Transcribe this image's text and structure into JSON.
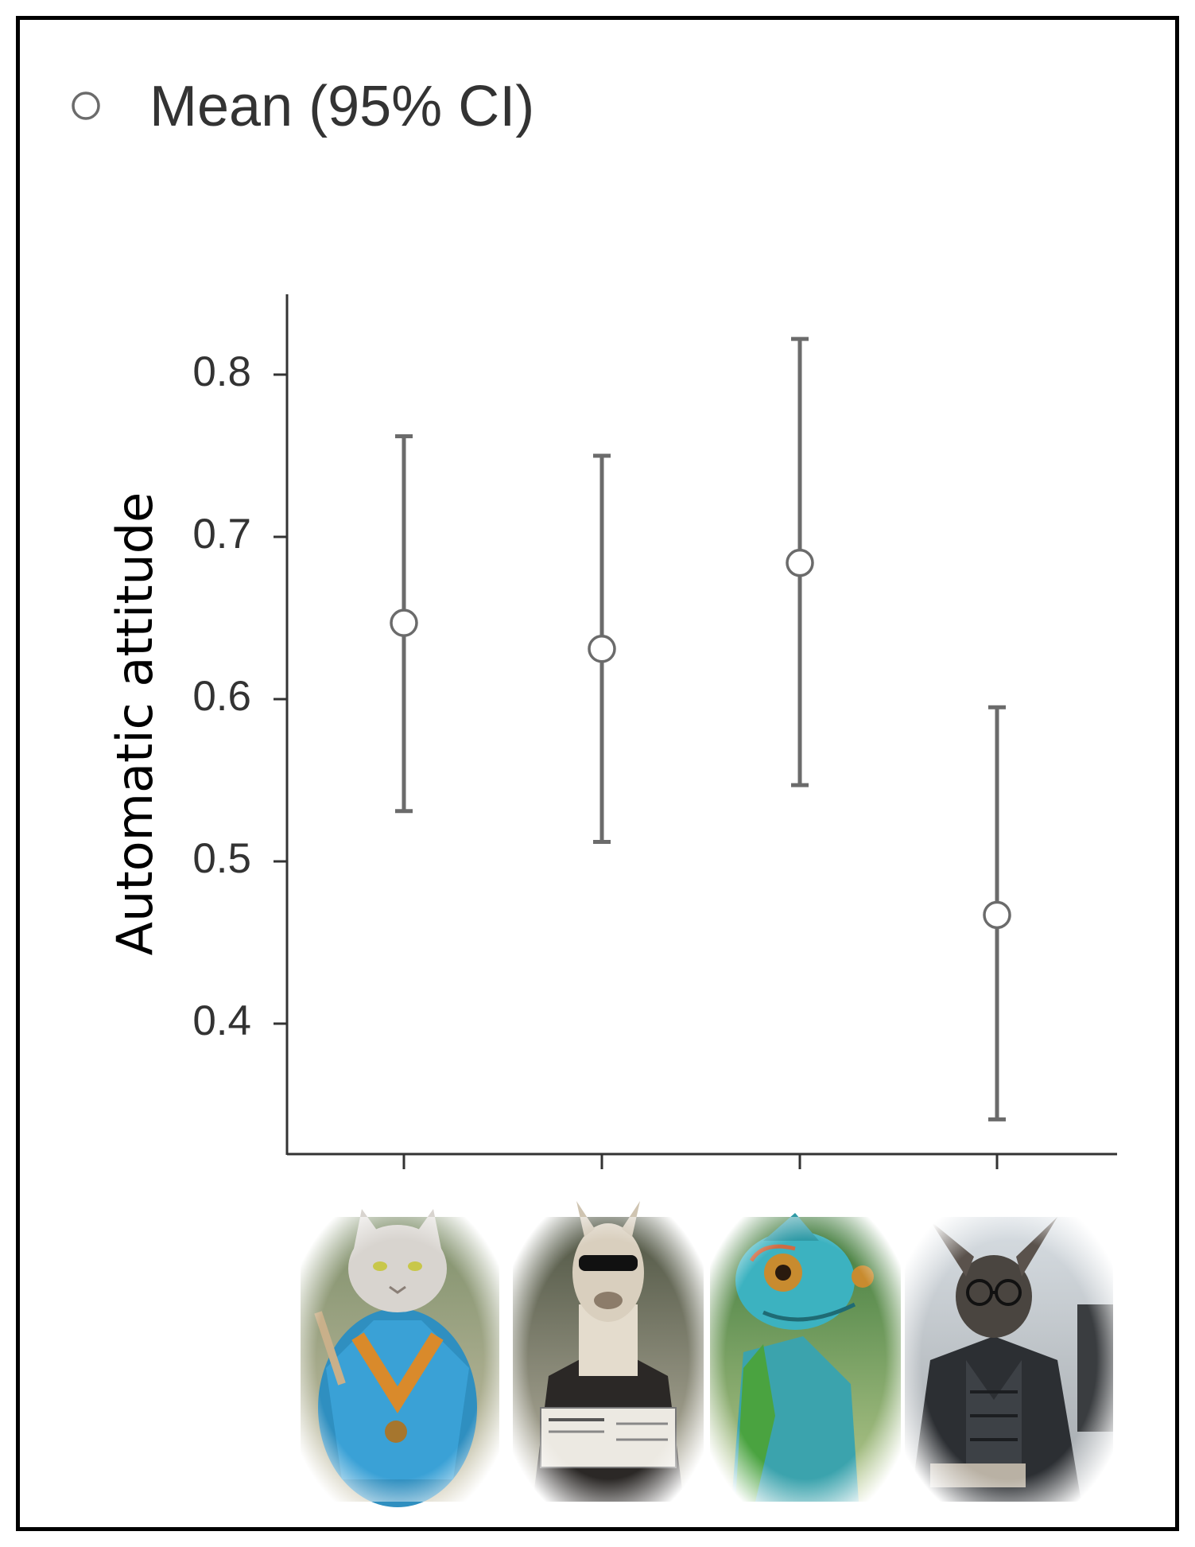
{
  "legend": {
    "label": "Mean (95% CI)",
    "marker": "open-circle"
  },
  "colors": {
    "errorbar": "#6b6b6b",
    "axis": "#333333",
    "marker_fill": "#ffffff",
    "frame": "#000000"
  },
  "chart_data": {
    "type": "scatter",
    "title": "",
    "xlabel": "",
    "ylabel": "Automatic attitude",
    "ylim": [
      0.34,
      0.845
    ],
    "yticks": [
      0.4,
      0.5,
      0.6,
      0.7,
      0.8
    ],
    "ytick_labels": [
      "0.4",
      "0.5",
      "0.6",
      "0.7",
      "0.8"
    ],
    "grid": false,
    "legend_position": "top-left",
    "categories": [
      "cat",
      "llama",
      "chameleon",
      "bat"
    ],
    "category_images": [
      "cat-in-blue-robe",
      "llama-with-sunglasses-reading-newspaper",
      "chameleon-lizard",
      "bat-eared-creature-with-glasses"
    ],
    "series": [
      {
        "name": "Mean (95% CI)",
        "mean": [
          0.647,
          0.631,
          0.684,
          0.467
        ],
        "ci_low": [
          0.531,
          0.512,
          0.547,
          0.341
        ],
        "ci_high": [
          0.762,
          0.75,
          0.822,
          0.595
        ]
      }
    ]
  }
}
